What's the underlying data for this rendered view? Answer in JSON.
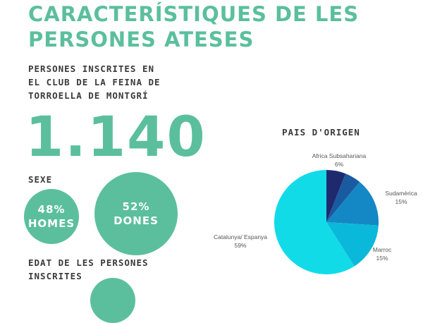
{
  "title": {
    "line1": "CARACTERÍSTIQUES DE LES",
    "line2": "PERSONES ATESES"
  },
  "subtitle": {
    "line1": "PERSONES INSCRITES EN",
    "line2": "EL CLUB DE LA FEINA DE",
    "line3": "TORROELLA DE MONTGRÍ"
  },
  "total": "1.140",
  "sexe": {
    "label": "SEXE",
    "homes": {
      "pct": "48%",
      "label": "HOMES"
    },
    "dones": {
      "pct": "52%",
      "label": "DONES"
    }
  },
  "edat": {
    "line1": "EDAT DE LES PERSONES",
    "line2": "INSCRITES"
  },
  "colors": {
    "accent": "#5bbf9d",
    "text": "#3a3a3a"
  },
  "chart_data": {
    "type": "pie",
    "title": "PAIS D'ORIGEN",
    "slices": [
      {
        "label": "Africa Subsahariana",
        "value_label": "6%",
        "value": 6,
        "color": "#1f2a6e"
      },
      {
        "label": "",
        "value_label": "",
        "value": 5,
        "color": "#1a5aa0"
      },
      {
        "label": "Sudamèrica",
        "value_label": "15%",
        "value": 15,
        "color": "#1488c4"
      },
      {
        "label": "Marroc",
        "value_label": "15%",
        "value": 15,
        "color": "#0ab8d9"
      },
      {
        "label": "Catalunya/ Espanya",
        "value_label": "59%",
        "value": 59,
        "color": "#12dbe8"
      }
    ]
  }
}
